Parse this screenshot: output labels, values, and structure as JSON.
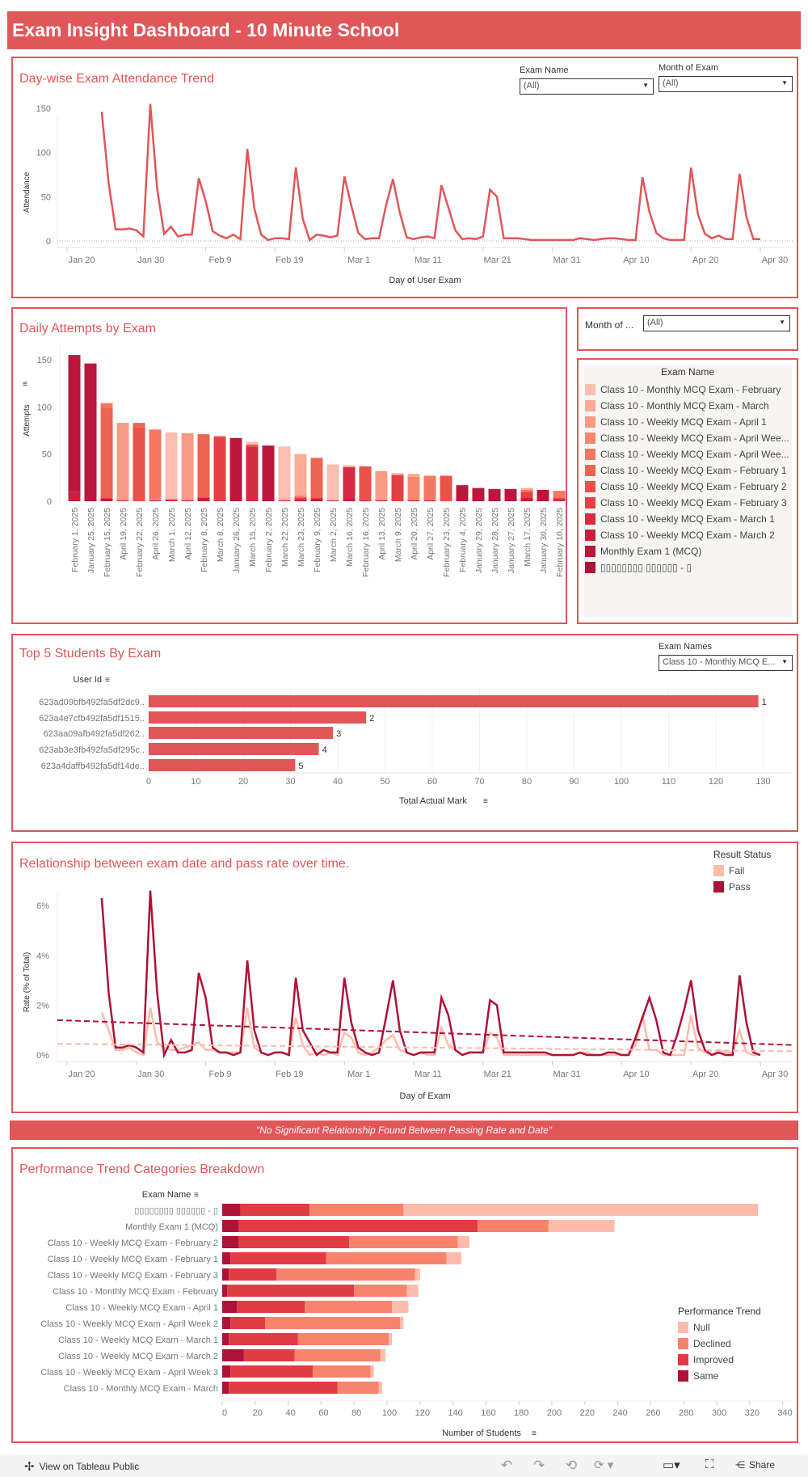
{
  "header": {
    "title": "Exam Insight Dashboard - 10 Minute School"
  },
  "attendance": {
    "title": "Day-wise Exam Attendance Trend",
    "filters": [
      {
        "label": "Exam Name",
        "value": "(All)"
      },
      {
        "label": "Month of Exam",
        "value": "(All)"
      }
    ],
    "chart_data": {
      "type": "line",
      "xlabel": "Day of User Exam",
      "ylabel": "Attendance",
      "yticks": [
        0,
        50,
        100,
        150
      ],
      "xticks": [
        "Jan 20",
        "Jan 30",
        "Feb 9",
        "Feb 19",
        "Mar 1",
        "Mar 11",
        "Mar 21",
        "Mar 31",
        "Apr 10",
        "Apr 20",
        "Apr 30"
      ],
      "start_date": "Jan 25",
      "values": [
        146,
        65,
        13,
        13,
        14,
        12,
        5,
        155,
        59,
        8,
        16,
        5,
        7,
        7,
        71,
        45,
        11,
        6,
        3,
        7,
        2,
        104,
        37,
        7,
        1,
        3,
        3,
        2,
        83,
        25,
        1,
        7,
        6,
        4,
        6,
        73,
        40,
        9,
        2,
        3,
        3,
        40,
        70,
        32,
        4,
        2,
        4,
        5,
        3,
        63,
        38,
        12,
        2,
        3,
        2,
        5,
        58,
        50,
        3,
        3,
        3,
        2,
        1,
        1,
        1,
        1,
        1,
        1,
        1,
        3,
        2,
        1,
        2,
        3,
        3,
        2,
        1,
        1,
        72,
        33,
        9,
        3,
        1,
        1,
        1,
        83,
        30,
        8,
        3,
        6,
        2,
        2,
        76,
        27,
        2,
        2
      ]
    }
  },
  "daily": {
    "title": "Daily Attempts by Exam",
    "month_filter": {
      "label": "Month of ...",
      "value": "(All)"
    },
    "chart_data": {
      "type": "bar",
      "ylabel": "Attempts",
      "yticks": [
        0,
        50,
        100,
        150
      ],
      "categories": [
        "February 1, 2025",
        "January 25, 2025",
        "February 15, 2025",
        "April 19, 2025",
        "February 22, 2025",
        "April 26, 2025",
        "March 1, 2025",
        "April 12, 2025",
        "February 8, 2025",
        "March 8, 2025",
        "January 26, 2025",
        "March 15, 2025",
        "February 2, 2025",
        "March 22, 2025",
        "March 23, 2025",
        "February 9, 2025",
        "March 2, 2025",
        "March 16, 2025",
        "February 16, 2025",
        "April 13, 2025",
        "March 9, 2025",
        "April 20, 2025",
        "April 27, 2025",
        "February 23, 2025",
        "February 4, 2025",
        "January 29, 2025",
        "January 28, 2025",
        "January 27, 2025",
        "March 17, 2025",
        "January 30, 2025",
        "February 10, 2025"
      ],
      "segments": [
        [
          [
            9,
            10
          ],
          [
            10,
            145
          ]
        ],
        [
          [
            10,
            146
          ]
        ],
        [
          [
            9,
            3
          ],
          [
            5,
            96
          ],
          [
            4,
            5
          ]
        ],
        [
          [
            8,
            1
          ],
          [
            2,
            82
          ]
        ],
        [
          [
            6,
            78
          ],
          [
            5,
            5
          ]
        ],
        [
          [
            9,
            1
          ],
          [
            3,
            2
          ],
          [
            4,
            73
          ]
        ],
        [
          [
            8,
            2
          ],
          [
            0,
            71
          ]
        ],
        [
          [
            9,
            1
          ],
          [
            2,
            71
          ]
        ],
        [
          [
            9,
            4
          ],
          [
            5,
            67
          ]
        ],
        [
          [
            7,
            68
          ],
          [
            6,
            1
          ]
        ],
        [
          [
            10,
            67
          ]
        ],
        [
          [
            8,
            58
          ],
          [
            6,
            2
          ],
          [
            0,
            3
          ]
        ],
        [
          [
            10,
            59
          ]
        ],
        [
          [
            8,
            1
          ],
          [
            1,
            2
          ],
          [
            0,
            55
          ]
        ],
        [
          [
            9,
            2
          ],
          [
            7,
            2
          ],
          [
            3,
            2
          ],
          [
            1,
            44
          ]
        ],
        [
          [
            9,
            3
          ],
          [
            5,
            43
          ]
        ],
        [
          [
            8,
            1
          ],
          [
            0,
            38
          ]
        ],
        [
          [
            9,
            3
          ],
          [
            8,
            33
          ],
          [
            1,
            2
          ]
        ],
        [
          [
            9,
            1
          ],
          [
            6,
            36
          ]
        ],
        [
          [
            9,
            1
          ],
          [
            2,
            31
          ]
        ],
        [
          [
            7,
            28
          ],
          [
            0,
            2
          ]
        ],
        [
          [
            9,
            1
          ],
          [
            3,
            25
          ],
          [
            1,
            3
          ]
        ],
        [
          [
            9,
            1
          ],
          [
            4,
            26
          ]
        ],
        [
          [
            6,
            27
          ]
        ],
        [
          [
            10,
            17
          ]
        ],
        [
          [
            10,
            14
          ]
        ],
        [
          [
            10,
            13
          ]
        ],
        [
          [
            10,
            13
          ]
        ],
        [
          [
            9,
            4
          ],
          [
            7,
            6
          ],
          [
            4,
            2
          ],
          [
            1,
            2
          ]
        ],
        [
          [
            10,
            12
          ]
        ],
        [
          [
            8,
            3
          ],
          [
            4,
            8
          ]
        ]
      ]
    },
    "legend": {
      "title": "Exam Name",
      "items": [
        {
          "label": "Class 10 - Monthly MCQ Exam - February",
          "color": "#fcbeb0"
        },
        {
          "label": "Class 10 - Monthly MCQ Exam - March",
          "color": "#fbab98"
        },
        {
          "label": "Class 10 - Weekly MCQ Exam - April 1",
          "color": "#f99a84"
        },
        {
          "label": "Class 10 - Weekly MCQ Exam - April Wee...",
          "color": "#f6876f"
        },
        {
          "label": "Class 10 - Weekly MCQ Exam - April Wee...",
          "color": "#f37862"
        },
        {
          "label": "Class 10 - Weekly MCQ Exam - February 1",
          "color": "#ee6452"
        },
        {
          "label": "Class 10 - Weekly MCQ Exam - February 2",
          "color": "#e95249"
        },
        {
          "label": "Class 10 - Weekly MCQ Exam - February 3",
          "color": "#e43f43"
        },
        {
          "label": "Class 10 - Weekly MCQ Exam - March 1",
          "color": "#d62c41"
        },
        {
          "label": "Class 10 - Weekly MCQ Exam - March 2",
          "color": "#c91f3e"
        },
        {
          "label": "Monthly Exam 1 (MCQ)",
          "color": "#b9183c"
        },
        {
          "label": "▯▯▯▯▯▯▯▯ ▯▯▯▯▯▯ - ▯",
          "color": "#ad1238"
        }
      ]
    }
  },
  "top5": {
    "title": "Top 5 Students By Exam",
    "filter": {
      "label": "Exam Names",
      "value": "Class 10 - Monthly MCQ E..."
    },
    "chart_data": {
      "type": "bar",
      "ylabel": "User Id",
      "xlabel": "Total Actual Mark",
      "xticks": [
        0,
        10,
        20,
        30,
        40,
        50,
        60,
        70,
        80,
        90,
        100,
        110,
        120,
        130
      ],
      "categories": [
        "623ad09bfb492fa5df2dc9..",
        "623a4e7cfb492fa5df1515..",
        "623aa09afb492fa5df262..",
        "623ab3e3fb492fa5df295c..",
        "623a4daffb492fa5df14de.."
      ],
      "values": [
        129,
        46,
        39,
        36,
        31
      ],
      "labels": [
        "1",
        "2",
        "3",
        "4",
        "5"
      ],
      "color": "#e05659"
    }
  },
  "relationship": {
    "title": "Relationship between exam date and pass rate over time.",
    "legend": {
      "title": "Result Status",
      "items": [
        {
          "label": "Fail",
          "color": "#fdbcab"
        },
        {
          "label": "Pass",
          "color": "#ad1238"
        }
      ]
    },
    "chart_data": {
      "type": "line",
      "xlabel": "Day of Exam",
      "ylabel": "Rate (% of Total)",
      "yticks": [
        "0%",
        "2%",
        "4%",
        "6%"
      ],
      "xticks": [
        "Jan 20",
        "Jan 30",
        "Feb 9",
        "Feb 19",
        "Mar 1",
        "Mar 11",
        "Mar 21",
        "Mar 31",
        "Apr 10",
        "Apr 20",
        "Apr 30"
      ],
      "start_date": "Jan 25",
      "series": [
        {
          "name": "Pass",
          "values": [
            6.3,
            2.5,
            0.3,
            0.3,
            0.4,
            0.3,
            0.1,
            6.6,
            2.5,
            0,
            0.6,
            0.1,
            0.1,
            0.2,
            3.3,
            2.3,
            0.3,
            0.1,
            0.1,
            0,
            0.1,
            3.8,
            1.0,
            0.1,
            0,
            0.1,
            0.1,
            0,
            3.1,
            1.0,
            0.5,
            0,
            0.2,
            0.1,
            0.1,
            3.1,
            1.3,
            0.3,
            0.1,
            0,
            0.1,
            1.5,
            3.0,
            1.0,
            0.1,
            0,
            0.1,
            0.1,
            0.1,
            2.3,
            1.6,
            0.2,
            0,
            0.1,
            0.1,
            0.1,
            2.2,
            2.0,
            0.1,
            0.1,
            0.1,
            0.1,
            0.1,
            0.1,
            0.1,
            0,
            0,
            0,
            0,
            0.1,
            0,
            0,
            0,
            0.1,
            0.1,
            0,
            0,
            0.7,
            1.5,
            2.3,
            1.4,
            0.1,
            0,
            0.8,
            1.8,
            3.0,
            1.0,
            0.2,
            0,
            0.1,
            0,
            0,
            3.2,
            1.3,
            0.1,
            0
          ]
        },
        {
          "name": "Fail",
          "values": [
            1.7,
            1.0,
            0.2,
            0.2,
            0.3,
            0.1,
            0,
            1.9,
            0.5,
            0.3,
            0.2,
            0.2,
            0.3,
            0.4,
            0.5,
            0.2,
            0.2,
            0.1,
            0.1,
            0.1,
            0.1,
            1.9,
            0.3,
            0.1,
            0,
            0.1,
            0.1,
            0,
            1.5,
            0.4,
            0,
            0.1,
            0,
            0.1,
            0,
            0.9,
            0.7,
            0.1,
            0,
            0.1,
            0.3,
            0.6,
            0.8,
            0.2,
            0.1,
            0,
            0.1,
            0,
            0,
            1.1,
            0.4,
            0.2,
            0,
            0.1,
            0.1,
            0.1,
            0.9,
            0.7,
            0,
            0,
            0,
            0,
            0,
            0,
            0,
            0,
            0,
            0,
            0,
            0.1,
            0.1,
            0,
            0,
            0,
            0,
            0,
            0,
            0.4,
            1.6,
            0.2,
            0.2,
            0,
            0,
            0,
            0,
            1.6,
            0.3,
            0.1,
            0,
            0.2,
            0.1,
            0.1,
            1.0,
            0.1,
            0,
            0
          ]
        }
      ],
      "trend_lines": [
        {
          "name": "Pass",
          "from": 1.4,
          "to": 0.4
        },
        {
          "name": "Fail",
          "from": 0.45,
          "to": 0.15
        }
      ]
    }
  },
  "banner": {
    "text": "\"No Significant Relationship Found Between Passing Rate and Date\""
  },
  "performance": {
    "title": "Performance Trend Categories Breakdown",
    "legend": {
      "title": "Performance Trend",
      "items": [
        {
          "label": "Null",
          "color": "#fdbcab"
        },
        {
          "label": "Declined",
          "color": "#f7836b"
        },
        {
          "label": "Improved",
          "color": "#e03c45"
        },
        {
          "label": "Same",
          "color": "#ad1238"
        }
      ]
    },
    "chart_data": {
      "type": "bar",
      "ylabel": "Exam Name",
      "xlabel": "Number of Students",
      "xticks": [
        0,
        20,
        40,
        60,
        80,
        100,
        120,
        140,
        160,
        180,
        200,
        220,
        240,
        260,
        280,
        300,
        320,
        340
      ],
      "stack_order": [
        "Same",
        "Improved",
        "Declined",
        "Null"
      ],
      "categories": [
        "▯▯▯▯▯▯▯▯ ▯▯▯▯▯▯ - ▯",
        "Monthly Exam 1 (MCQ)",
        "Class 10 - Weekly MCQ Exam - February 2",
        "Class 10 - Weekly MCQ Exam - February 1",
        "Class 10 - Weekly MCQ Exam - February 3",
        "Class 10 - Monthly MCQ Exam - February",
        "Class 10 - Weekly MCQ Exam - April 1",
        "Class 10 - Weekly MCQ Exam - April Week 2",
        "Class 10 - Weekly MCQ Exam - March 1",
        "Class 10 - Weekly MCQ Exam - March 2",
        "Class 10 - Weekly MCQ Exam - April Week 3",
        "Class 10 - Monthly MCQ Exam - March"
      ],
      "values": [
        [
          11,
          42,
          57,
          215
        ],
        [
          10,
          145,
          43,
          40
        ],
        [
          10,
          67,
          66,
          7
        ],
        [
          5,
          58,
          73,
          9
        ],
        [
          4,
          29,
          84,
          3
        ],
        [
          3,
          77,
          32,
          7
        ],
        [
          9,
          41,
          53,
          10
        ],
        [
          5,
          21,
          82,
          2
        ],
        [
          4,
          42,
          55,
          2
        ],
        [
          13,
          31,
          52,
          3
        ],
        [
          5,
          50,
          35,
          2
        ],
        [
          4,
          66,
          25,
          2
        ]
      ]
    }
  },
  "footer": {
    "tableau_link": "View on Tableau Public",
    "share": "Share"
  }
}
